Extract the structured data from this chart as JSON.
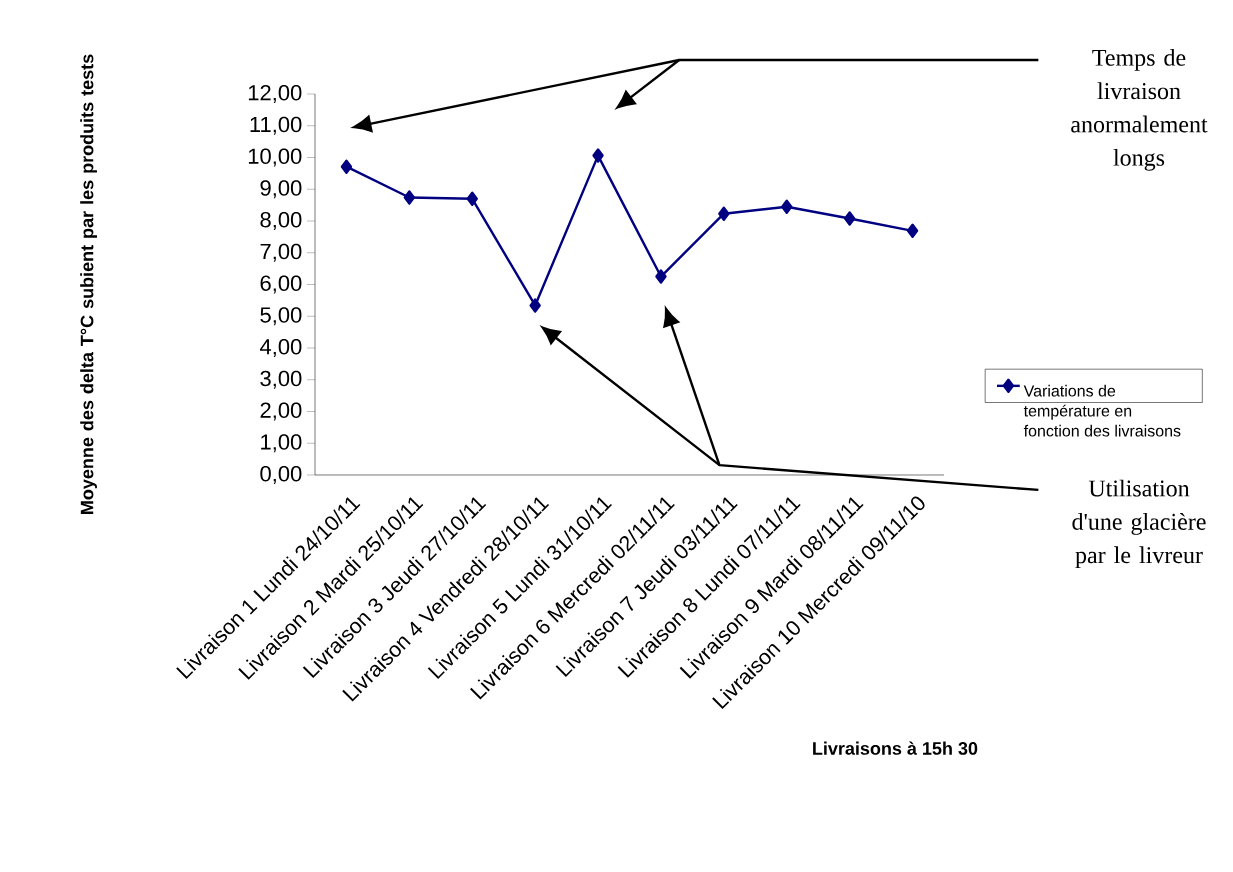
{
  "chart_data": {
    "type": "line",
    "categories": [
      "Livraison 1 Lundi 24/10/11",
      "Livraison 2 Mardi 25/10/11",
      "Livraison 3 Jeudi 27/10/11",
      "Livraison 4 Vendredi 28/10/11",
      "Livraison 5 Lundi 31/10/11",
      "Livraison 6 Mercredi 02/11/11",
      "Livraison 7 Jeudi 03/11/11",
      "Livraison 8 Lundi 07/11/11",
      "Livraison 9 Mardi 08/11/11",
      "Livraison 10 Mercredi 09/11/10"
    ],
    "series": [
      {
        "name": "Variations de température en fonction des livraisons",
        "color": "#000080",
        "values": [
          9.71,
          8.74,
          8.7,
          5.34,
          10.06,
          6.25,
          8.23,
          8.45,
          8.08,
          7.69
        ]
      }
    ],
    "xlabel": "Livraisons à 15h 30",
    "ylabel": "Moyenne des delta T°C subient par les produits tests",
    "ylim": [
      0,
      12
    ],
    "yticks": [
      {
        "value": 0,
        "label": "0,00"
      },
      {
        "value": 1,
        "label": "1,00"
      },
      {
        "value": 2,
        "label": "2,00"
      },
      {
        "value": 3,
        "label": "3,00"
      },
      {
        "value": 4,
        "label": "4,00"
      },
      {
        "value": 5,
        "label": "5,00"
      },
      {
        "value": 6,
        "label": "6,00"
      },
      {
        "value": 7,
        "label": "7,00"
      },
      {
        "value": 8,
        "label": "8,00"
      },
      {
        "value": 9,
        "label": "9,00"
      },
      {
        "value": 10,
        "label": "10,00"
      },
      {
        "value": 11,
        "label": "11,00"
      },
      {
        "value": 12,
        "label": "12,00"
      }
    ],
    "annotations": [
      "Temps de livraison anormalement longs",
      "Utilisation d'une glacière par le livreur"
    ],
    "grid": false,
    "legend": "right",
    "marker": "diamond",
    "line_style": "solid"
  }
}
